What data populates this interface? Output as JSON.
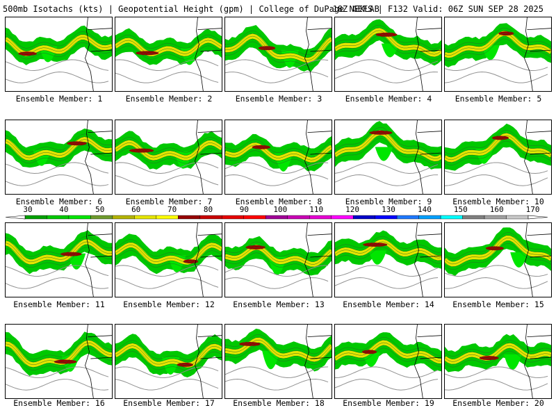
{
  "header": {
    "title": "500mb Isotachs (kts) | Geopotential Height (gpm) | College of DuPage NEXLAB",
    "run_info": "18Z GEFS | F132 Valid: 06Z SUN SEP 28 2025"
  },
  "panel_labels": [
    "Ensemble Member: 1",
    "Ensemble Member: 2",
    "Ensemble Member: 3",
    "Ensemble Member: 4",
    "Ensemble Member: 5",
    "Ensemble Member: 6",
    "Ensemble Member: 7",
    "Ensemble Member: 8",
    "Ensemble Member: 9",
    "Ensemble Member: 10",
    "Ensemble Member: 11",
    "Ensemble Member: 12",
    "Ensemble Member: 13",
    "Ensemble Member: 14",
    "Ensemble Member: 15",
    "Ensemble Member: 16",
    "Ensemble Member: 17",
    "Ensemble Member: 18",
    "Ensemble Member: 19",
    "Ensemble Member: 20"
  ],
  "colorbar": {
    "ticks": [
      "30",
      "40",
      "50",
      "60",
      "70",
      "80",
      "90",
      "100",
      "110",
      "120",
      "130",
      "140",
      "150",
      "160",
      "170"
    ],
    "colors": [
      "#00a000",
      "#00c800",
      "#00e600",
      "#6e9b2d",
      "#b4b400",
      "#e6e600",
      "#ffff00",
      "#960000",
      "#c80000",
      "#e60000",
      "#ff0000",
      "#a00096",
      "#c800b4",
      "#e600d2",
      "#ff00ff",
      "#0000c8",
      "#0000ff",
      "#1e78ff",
      "#00a0ff",
      "#00ffff",
      "#808080",
      "#a0a0a0",
      "#c8c8c8"
    ]
  }
}
